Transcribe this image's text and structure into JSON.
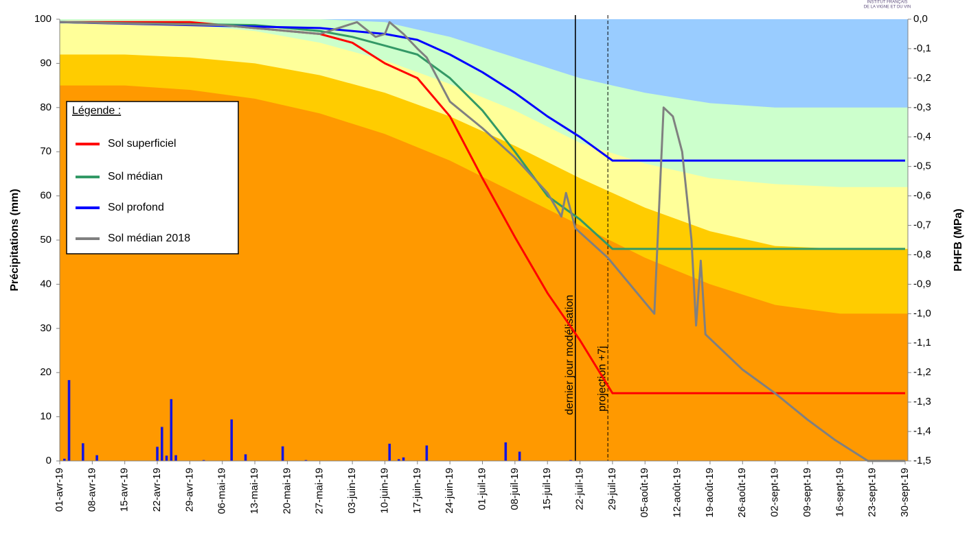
{
  "chart_data": {
    "type": "line",
    "ylabel": "Précipitations (mm)",
    "y2label": "PHFB (MPa)",
    "logo_lines": [
      "INSTITUT FRANÇAIS",
      "DE LA VIGNE ET DU VIN"
    ],
    "xlim": [
      "2019-04-01",
      "2019-09-30"
    ],
    "xticks": [
      {
        "value": "2019-04-01",
        "label": "01-avr-19"
      },
      {
        "value": "2019-04-08",
        "label": "08-avr-19"
      },
      {
        "value": "2019-04-15",
        "label": "15-avr-19"
      },
      {
        "value": "2019-04-22",
        "label": "22-avr-19"
      },
      {
        "value": "2019-04-29",
        "label": "29-avr-19"
      },
      {
        "value": "2019-05-06",
        "label": "06-mai-19"
      },
      {
        "value": "2019-05-13",
        "label": "13-mai-19"
      },
      {
        "value": "2019-05-20",
        "label": "20-mai-19"
      },
      {
        "value": "2019-05-27",
        "label": "27-mai-19"
      },
      {
        "value": "2019-06-03",
        "label": "03-juin-19"
      },
      {
        "value": "2019-06-10",
        "label": "10-juin-19"
      },
      {
        "value": "2019-06-17",
        "label": "17-juin-19"
      },
      {
        "value": "2019-06-24",
        "label": "24-juin-19"
      },
      {
        "value": "2019-07-01",
        "label": "01-juil-19"
      },
      {
        "value": "2019-07-08",
        "label": "08-juil-19"
      },
      {
        "value": "2019-07-15",
        "label": "15-juil-19"
      },
      {
        "value": "2019-07-22",
        "label": "22-juil-19"
      },
      {
        "value": "2019-07-29",
        "label": "29-juil-19"
      },
      {
        "value": "2019-08-05",
        "label": "05-août-19"
      },
      {
        "value": "2019-08-12",
        "label": "12-août-19"
      },
      {
        "value": "2019-08-19",
        "label": "19-août-19"
      },
      {
        "value": "2019-08-26",
        "label": "26-août-19"
      },
      {
        "value": "2019-09-02",
        "label": "02-sept-19"
      },
      {
        "value": "2019-09-09",
        "label": "09-sept-19"
      },
      {
        "value": "2019-09-16",
        "label": "16-sept-19"
      },
      {
        "value": "2019-09-23",
        "label": "23-sept-19"
      },
      {
        "value": "2019-09-30",
        "label": "30-sept-19"
      }
    ],
    "ylim": [
      0,
      100
    ],
    "yticks": [
      0,
      10,
      20,
      30,
      40,
      50,
      60,
      70,
      80,
      90,
      100
    ],
    "y2lim": [
      -1.5,
      0
    ],
    "y2ticks": [
      {
        "value": 0,
        "label": "0,0"
      },
      {
        "value": -0.1,
        "label": "-0,1"
      },
      {
        "value": -0.2,
        "label": "-0,2"
      },
      {
        "value": -0.3,
        "label": "-0,3"
      },
      {
        "value": -0.4,
        "label": "-0,4"
      },
      {
        "value": -0.5,
        "label": "-0,5"
      },
      {
        "value": -0.6,
        "label": "-0,6"
      },
      {
        "value": -0.7,
        "label": "-0,7"
      },
      {
        "value": -0.8,
        "label": "-0,8"
      },
      {
        "value": -0.9,
        "label": "-0,9"
      },
      {
        "value": -1.0,
        "label": "-1,0"
      },
      {
        "value": -1.1,
        "label": "-1,1"
      },
      {
        "value": -1.2,
        "label": "-1,2"
      },
      {
        "value": -1.3,
        "label": "-1,3"
      },
      {
        "value": -1.4,
        "label": "-1,4"
      },
      {
        "value": -1.5,
        "label": "-1,5"
      }
    ],
    "plot_background": "#ff9900",
    "zone_x": [
      "2019-04-01",
      "2019-04-15",
      "2019-04-29",
      "2019-05-13",
      "2019-05-27",
      "2019-06-10",
      "2019-06-24",
      "2019-07-08",
      "2019-07-22",
      "2019-08-05",
      "2019-08-19",
      "2019-09-02",
      "2019-09-16",
      "2019-09-30"
    ],
    "zones": [
      {
        "color": "#ffcc00",
        "values": [
          -0.225,
          -0.225,
          -0.24,
          -0.27,
          -0.32,
          -0.39,
          -0.48,
          -0.59,
          -0.7,
          -0.81,
          -0.9,
          -0.97,
          -1.0,
          -1.0
        ]
      },
      {
        "color": "#ffff99",
        "values": [
          -0.12,
          -0.12,
          -0.13,
          -0.15,
          -0.19,
          -0.25,
          -0.33,
          -0.43,
          -0.54,
          -0.64,
          -0.72,
          -0.77,
          -0.78,
          -0.78
        ]
      },
      {
        "color": "#ccffcc",
        "values": [
          -0.015,
          -0.015,
          -0.02,
          -0.04,
          -0.08,
          -0.14,
          -0.22,
          -0.31,
          -0.42,
          -0.49,
          -0.54,
          -0.56,
          -0.57,
          -0.57
        ]
      },
      {
        "color": "#99ccff",
        "values": [
          0,
          0,
          0,
          0,
          0,
          -0.01,
          -0.06,
          -0.13,
          -0.2,
          -0.25,
          -0.285,
          -0.3,
          -0.3,
          -0.3
        ]
      }
    ],
    "precipitation": {
      "color": "#1515e0",
      "axis": "y",
      "x": [
        "2019-04-02",
        "2019-04-03",
        "2019-04-06",
        "2019-04-09",
        "2019-04-22",
        "2019-04-23",
        "2019-04-24",
        "2019-04-25",
        "2019-04-26",
        "2019-05-02",
        "2019-05-08",
        "2019-05-11",
        "2019-05-19",
        "2019-05-24",
        "2019-06-11",
        "2019-06-13",
        "2019-06-14",
        "2019-06-19",
        "2019-07-06",
        "2019-07-09",
        "2019-07-20"
      ],
      "values": [
        0.5,
        18.3,
        4,
        1.3,
        3.2,
        7.7,
        1.2,
        14,
        1.3,
        0.2,
        9.4,
        1.5,
        3.3,
        0.2,
        3.9,
        0.4,
        0.8,
        3.5,
        4.2,
        2.1,
        0.2
      ]
    },
    "legend_title": "Légende :",
    "legend": "upper-left",
    "series": [
      {
        "name": "Sol superficiel",
        "color": "#ff0000",
        "axis": "y2",
        "x": [
          "2019-04-01",
          "2019-04-29",
          "2019-05-13",
          "2019-05-27",
          "2019-06-03",
          "2019-06-10",
          "2019-06-17",
          "2019-06-24",
          "2019-07-01",
          "2019-07-08",
          "2019-07-15",
          "2019-07-22",
          "2019-07-29",
          "2019-09-30"
        ],
        "values": [
          -0.01,
          -0.01,
          -0.03,
          -0.05,
          -0.08,
          -0.15,
          -0.2,
          -0.33,
          -0.54,
          -0.74,
          -0.93,
          -1.09,
          -1.27,
          -1.27
        ]
      },
      {
        "name": "Sol médian",
        "color": "#339966",
        "axis": "y2",
        "x": [
          "2019-04-01",
          "2019-05-13",
          "2019-05-27",
          "2019-06-03",
          "2019-06-10",
          "2019-06-17",
          "2019-06-24",
          "2019-07-01",
          "2019-07-08",
          "2019-07-15",
          "2019-07-22",
          "2019-07-29",
          "2019-09-30"
        ],
        "values": [
          -0.01,
          -0.02,
          -0.04,
          -0.06,
          -0.09,
          -0.12,
          -0.2,
          -0.31,
          -0.45,
          -0.6,
          -0.68,
          -0.78,
          -0.78
        ]
      },
      {
        "name": "Sol profond",
        "color": "#0000ff",
        "axis": "y2",
        "x": [
          "2019-04-01",
          "2019-05-27",
          "2019-06-10",
          "2019-06-17",
          "2019-06-24",
          "2019-07-01",
          "2019-07-08",
          "2019-07-15",
          "2019-07-22",
          "2019-07-29",
          "2019-09-30"
        ],
        "values": [
          -0.01,
          -0.03,
          -0.05,
          -0.07,
          -0.12,
          -0.18,
          -0.25,
          -0.33,
          -0.4,
          -0.48,
          -0.48
        ]
      },
      {
        "name": "Sol médian 2018",
        "color": "#808080",
        "axis": "y2",
        "x": [
          "2019-04-01",
          "2019-05-06",
          "2019-05-20",
          "2019-05-27",
          "2019-05-31",
          "2019-06-04",
          "2019-06-08",
          "2019-06-10",
          "2019-06-11",
          "2019-06-14",
          "2019-06-17",
          "2019-06-19",
          "2019-06-24",
          "2019-07-01",
          "2019-07-08",
          "2019-07-15",
          "2019-07-18",
          "2019-07-19",
          "2019-07-21",
          "2019-07-28",
          "2019-08-07",
          "2019-08-09",
          "2019-08-11",
          "2019-08-13",
          "2019-08-15",
          "2019-08-16",
          "2019-08-17",
          "2019-08-18",
          "2019-08-26",
          "2019-09-02",
          "2019-09-09",
          "2019-09-15",
          "2019-09-22",
          "2019-09-30"
        ],
        "values": [
          -0.01,
          -0.02,
          -0.04,
          -0.05,
          -0.03,
          -0.01,
          -0.06,
          -0.05,
          -0.01,
          -0.05,
          -0.1,
          -0.13,
          -0.28,
          -0.37,
          -0.47,
          -0.59,
          -0.67,
          -0.59,
          -0.71,
          -0.81,
          -1.0,
          -0.3,
          -0.33,
          -0.45,
          -0.75,
          -1.04,
          -0.82,
          -1.07,
          -1.19,
          -1.27,
          -1.36,
          -1.43,
          -1.5,
          -1.5
        ]
      }
    ],
    "annotations": [
      {
        "text": "dernier jour modélisation",
        "x": "2019-07-21",
        "style": "solid"
      },
      {
        "text": "projection +7j",
        "x": "2019-07-28",
        "style": "dashed"
      }
    ]
  }
}
